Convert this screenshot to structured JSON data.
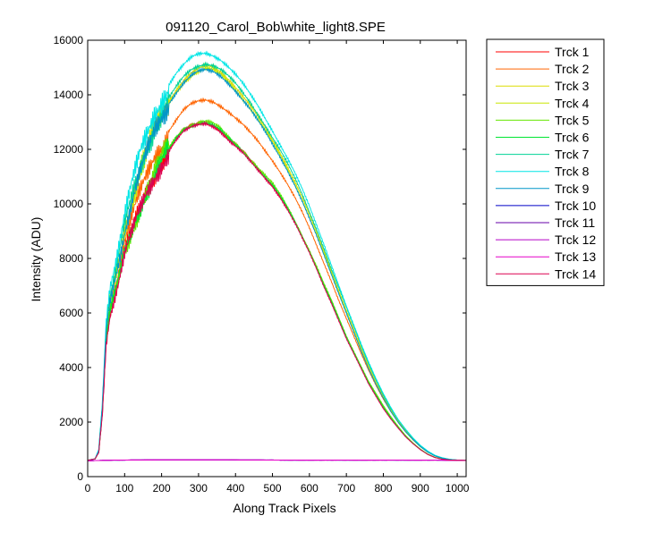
{
  "chart_data": {
    "type": "line",
    "title": "091120_Carol_Bob\\white_light8.SPE",
    "xlabel": "Along Track Pixels",
    "ylabel": "Intensity (ADU)",
    "xlim": [
      0,
      1024
    ],
    "ylim": [
      0,
      16000
    ],
    "xticks": [
      0,
      100,
      200,
      300,
      400,
      500,
      600,
      700,
      800,
      900,
      1000
    ],
    "yticks": [
      0,
      2000,
      4000,
      6000,
      8000,
      10000,
      12000,
      14000,
      16000
    ],
    "grid": false,
    "legend_position": "outside-right",
    "x": [
      0,
      20,
      30,
      40,
      50,
      60,
      70,
      80,
      100,
      120,
      140,
      160,
      180,
      200,
      220,
      240,
      260,
      280,
      300,
      320,
      340,
      360,
      380,
      400,
      420,
      440,
      460,
      480,
      500,
      520,
      540,
      560,
      580,
      600,
      620,
      640,
      660,
      680,
      700,
      720,
      740,
      760,
      780,
      800,
      820,
      840,
      860,
      880,
      900,
      920,
      940,
      960,
      980,
      1000,
      1024
    ],
    "series": [
      {
        "name": "Trck 1",
        "color": "#ff0000",
        "values": [
          600,
          650,
          900,
          2400,
          5000,
          6000,
          6500,
          7000,
          8200,
          9000,
          9800,
          10500,
          11100,
          11600,
          12000,
          12400,
          12700,
          12850,
          12950,
          13000,
          12900,
          12700,
          12400,
          12150,
          11900,
          11600,
          11300,
          11000,
          10700,
          10300,
          9850,
          9350,
          8800,
          8250,
          7650,
          7000,
          6400,
          5750,
          5100,
          4550,
          4000,
          3450,
          3000,
          2550,
          2150,
          1800,
          1480,
          1220,
          1000,
          820,
          700,
          640,
          610,
          600,
          600
        ]
      },
      {
        "name": "Trck 2",
        "color": "#ff6400",
        "values": [
          600,
          650,
          900,
          2500,
          5200,
          6200,
          6800,
          7300,
          8600,
          9500,
          10300,
          11000,
          11700,
          12200,
          12700,
          13100,
          13450,
          13650,
          13750,
          13800,
          13750,
          13600,
          13400,
          13150,
          12900,
          12600,
          12300,
          11950,
          11600,
          11200,
          10750,
          10250,
          9700,
          9100,
          8450,
          7800,
          7150,
          6450,
          5800,
          5150,
          4500,
          3900,
          3350,
          2850,
          2400,
          2000,
          1650,
          1350,
          1100,
          900,
          760,
          670,
          620,
          600,
          600
        ]
      },
      {
        "name": "Trck 3",
        "color": "#dcdc00",
        "values": [
          600,
          650,
          950,
          2600,
          5400,
          6500,
          7100,
          7700,
          9100,
          10100,
          11100,
          11900,
          12700,
          13300,
          13800,
          14200,
          14550,
          14800,
          14950,
          15050,
          15000,
          14850,
          14600,
          14300,
          13950,
          13600,
          13200,
          12800,
          12350,
          11900,
          11400,
          10850,
          10250,
          9600,
          8950,
          8250,
          7500,
          6800,
          6100,
          5400,
          4700,
          4050,
          3450,
          2950,
          2450,
          2050,
          1700,
          1400,
          1130,
          920,
          770,
          680,
          630,
          605,
          600
        ]
      },
      {
        "name": "Trck 4",
        "color": "#c8e600",
        "values": [
          600,
          650,
          950,
          2600,
          5400,
          6500,
          7100,
          7700,
          9100,
          10100,
          11000,
          11800,
          12600,
          13200,
          13700,
          14100,
          14450,
          14700,
          14850,
          14950,
          14900,
          14750,
          14500,
          14200,
          13850,
          13500,
          13100,
          12700,
          12250,
          11800,
          11300,
          10750,
          10150,
          9500,
          8850,
          8150,
          7450,
          6750,
          6050,
          5350,
          4650,
          4000,
          3400,
          2900,
          2420,
          2020,
          1670,
          1370,
          1110,
          910,
          760,
          675,
          625,
          605,
          600
        ]
      },
      {
        "name": "Trck 5",
        "color": "#64e600",
        "values": [
          600,
          650,
          900,
          2400,
          5000,
          6000,
          6500,
          7000,
          8200,
          9000,
          9800,
          10550,
          11150,
          11650,
          12050,
          12450,
          12750,
          12900,
          13000,
          13050,
          12950,
          12750,
          12450,
          12200,
          11950,
          11650,
          11350,
          11050,
          10750,
          10350,
          9900,
          9400,
          8850,
          8300,
          7700,
          7050,
          6450,
          5800,
          5150,
          4600,
          4050,
          3500,
          3050,
          2600,
          2200,
          1840,
          1510,
          1240,
          1010,
          830,
          705,
          645,
          612,
          600,
          600
        ]
      },
      {
        "name": "Trck 6",
        "color": "#00e632",
        "values": [
          600,
          650,
          900,
          2400,
          5000,
          6000,
          6500,
          7000,
          8200,
          9000,
          9800,
          10500,
          11100,
          11600,
          12000,
          12400,
          12700,
          12850,
          12950,
          13000,
          12900,
          12700,
          12400,
          12150,
          11900,
          11600,
          11300,
          11000,
          10700,
          10300,
          9850,
          9350,
          8800,
          8250,
          7650,
          7000,
          6400,
          5750,
          5100,
          4550,
          4000,
          3450,
          3000,
          2550,
          2150,
          1800,
          1480,
          1220,
          1000,
          820,
          700,
          640,
          610,
          600,
          600
        ]
      },
      {
        "name": "Trck 7",
        "color": "#00d296",
        "values": [
          600,
          650,
          950,
          2650,
          5500,
          6600,
          7200,
          7800,
          9200,
          10200,
          11200,
          12000,
          12800,
          13400,
          13900,
          14300,
          14650,
          14900,
          15050,
          15150,
          15100,
          14950,
          14700,
          14400,
          14050,
          13700,
          13300,
          12900,
          12450,
          12000,
          11500,
          10950,
          10350,
          9700,
          9050,
          8350,
          7600,
          6900,
          6200,
          5500,
          4800,
          4150,
          3550,
          3000,
          2500,
          2080,
          1720,
          1410,
          1140,
          930,
          775,
          685,
          632,
          606,
          600
        ]
      },
      {
        "name": "Trck 8",
        "color": "#00e6e6",
        "values": [
          600,
          650,
          1000,
          2800,
          5800,
          7000,
          7600,
          8200,
          9600,
          10700,
          11700,
          12500,
          13300,
          13900,
          14400,
          14800,
          15100,
          15350,
          15480,
          15520,
          15450,
          15300,
          15050,
          14750,
          14400,
          14000,
          13600,
          13150,
          12700,
          12200,
          11700,
          11150,
          10550,
          9900,
          9200,
          8500,
          7750,
          7000,
          6250,
          5550,
          4850,
          4200,
          3600,
          3050,
          2550,
          2100,
          1740,
          1420,
          1150,
          940,
          780,
          690,
          635,
          607,
          600
        ]
      },
      {
        "name": "Trck 9",
        "color": "#0096c8",
        "values": [
          600,
          650,
          950,
          2600,
          5400,
          6500,
          7100,
          7700,
          9000,
          10000,
          11000,
          11800,
          12600,
          13200,
          13700,
          14100,
          14450,
          14700,
          14850,
          14900,
          14850,
          14700,
          14450,
          14150,
          13800,
          13450,
          13050,
          12650,
          12200,
          11750,
          11250,
          10700,
          10100,
          9450,
          8800,
          8100,
          7400,
          6700,
          6000,
          5300,
          4600,
          3950,
          3380,
          2880,
          2400,
          2000,
          1650,
          1360,
          1100,
          900,
          755,
          672,
          623,
          604,
          600
        ]
      },
      {
        "name": "Trck 10",
        "color": "#0000c8",
        "values": [
          580,
          590,
          590,
          595,
          600,
          600,
          605,
          605,
          605,
          610,
          610,
          612,
          612,
          615,
          615,
          615,
          615,
          615,
          615,
          615,
          615,
          615,
          612,
          612,
          610,
          610,
          610,
          608,
          608,
          605,
          605,
          605,
          605,
          605,
          605,
          605,
          605,
          605,
          605,
          605,
          605,
          605,
          605,
          605,
          605,
          605,
          605,
          605,
          605,
          605,
          605,
          602,
          600,
          595,
          590
        ]
      },
      {
        "name": "Trck 11",
        "color": "#6400aa",
        "values": [
          580,
          590,
          590,
          595,
          600,
          600,
          605,
          605,
          605,
          610,
          610,
          612,
          612,
          615,
          615,
          615,
          615,
          615,
          615,
          615,
          615,
          615,
          612,
          612,
          610,
          610,
          610,
          608,
          608,
          605,
          605,
          605,
          605,
          605,
          605,
          605,
          605,
          605,
          605,
          605,
          605,
          605,
          605,
          605,
          605,
          605,
          605,
          605,
          605,
          605,
          605,
          602,
          600,
          595,
          590
        ]
      },
      {
        "name": "Trck 12",
        "color": "#b400c8",
        "values": [
          580,
          590,
          590,
          595,
          600,
          600,
          605,
          605,
          605,
          610,
          610,
          612,
          612,
          615,
          615,
          615,
          615,
          615,
          615,
          615,
          615,
          615,
          612,
          612,
          610,
          610,
          610,
          608,
          608,
          605,
          605,
          605,
          605,
          605,
          605,
          605,
          605,
          605,
          605,
          605,
          605,
          605,
          605,
          605,
          605,
          605,
          605,
          605,
          605,
          605,
          605,
          602,
          600,
          595,
          590
        ]
      },
      {
        "name": "Trck 13",
        "color": "#e600c8",
        "values": [
          580,
          590,
          590,
          595,
          600,
          600,
          605,
          605,
          605,
          610,
          610,
          612,
          612,
          615,
          615,
          615,
          615,
          615,
          615,
          615,
          615,
          615,
          612,
          612,
          610,
          610,
          610,
          608,
          608,
          605,
          605,
          605,
          605,
          605,
          605,
          605,
          605,
          605,
          605,
          605,
          605,
          605,
          605,
          605,
          605,
          605,
          605,
          605,
          605,
          605,
          605,
          602,
          600,
          595,
          590
        ]
      },
      {
        "name": "Trck 14",
        "color": "#dc0050",
        "values": [
          600,
          650,
          880,
          2350,
          4900,
          5900,
          6400,
          6900,
          8100,
          8900,
          9700,
          10400,
          11000,
          11500,
          11950,
          12350,
          12650,
          12800,
          12900,
          12950,
          12850,
          12650,
          12350,
          12100,
          11850,
          11550,
          11250,
          10950,
          10650,
          10250,
          9800,
          9300,
          8750,
          8200,
          7600,
          6950,
          6350,
          5700,
          5050,
          4500,
          3950,
          3400,
          2950,
          2500,
          2120,
          1780,
          1460,
          1210,
          990,
          815,
          698,
          638,
          609,
          600,
          600
        ]
      }
    ]
  }
}
